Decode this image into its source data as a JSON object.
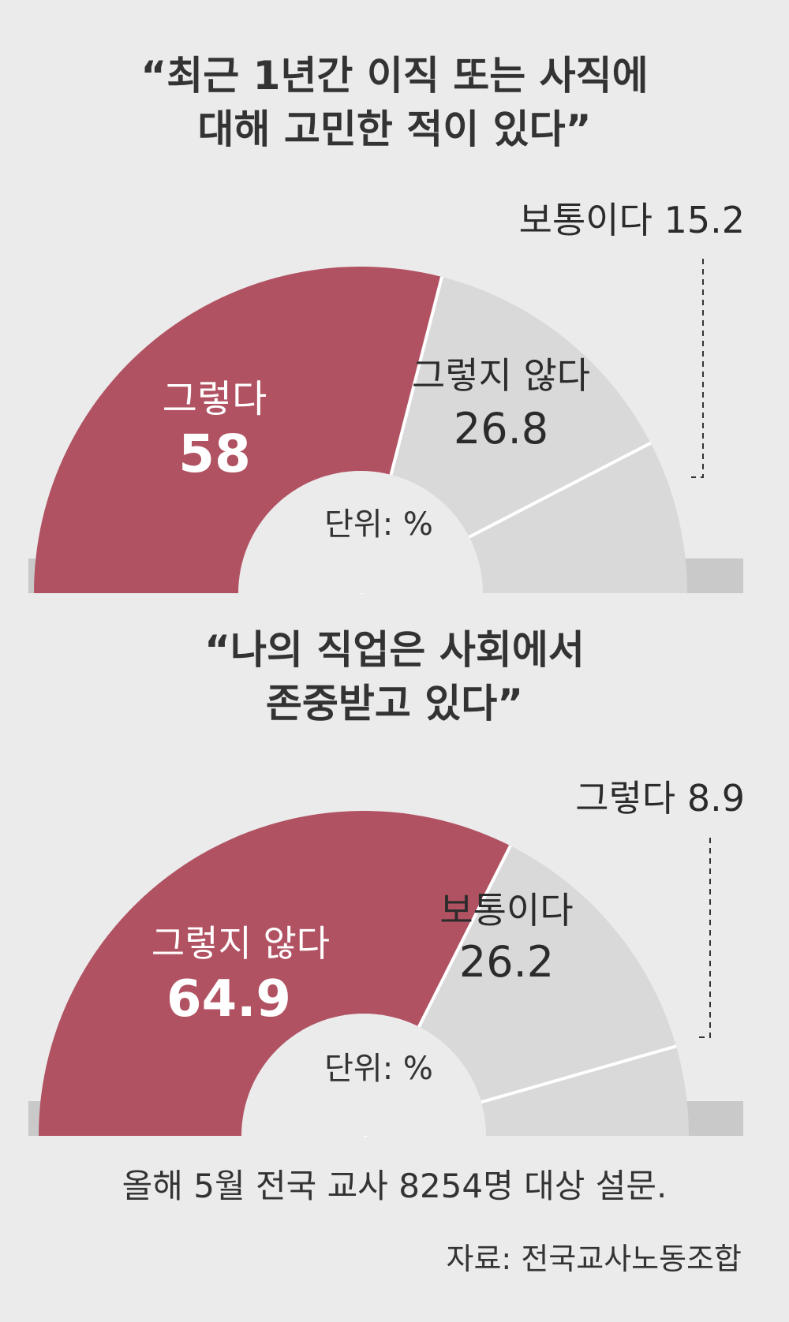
{
  "chart_data": [
    {
      "type": "pie",
      "title_line1": "“최근 1년간 이직 또는 사직에",
      "title_line2": "대해 고민한 적이 있다”",
      "unit_label": "단위: %",
      "categories": [
        "그렇다",
        "그렇지 않다",
        "보통이다"
      ],
      "values": [
        58,
        26.8,
        15.2
      ],
      "labels": {
        "primary_name": "그렇다",
        "primary_value": "58",
        "secondary_name": "그렇지 않다",
        "secondary_value": "26.8",
        "callout": "보통이다 15.2"
      },
      "colors": [
        "#b15262",
        "#d9d9da",
        "#d9d9da"
      ]
    },
    {
      "type": "pie",
      "title_line1": "“나의 직업은 사회에서",
      "title_line2": "존중받고 있다”",
      "unit_label": "단위: %",
      "categories": [
        "그렇지 않다",
        "보통이다",
        "그렇다"
      ],
      "values": [
        64.9,
        26.2,
        8.9
      ],
      "labels": {
        "primary_name": "그렇지 않다",
        "primary_value": "64.9",
        "secondary_name": "보통이다",
        "secondary_value": "26.2",
        "callout": "그렇다 8.9"
      },
      "colors": [
        "#b15262",
        "#d9d9da",
        "#d9d9da"
      ]
    }
  ],
  "footer": {
    "note": "올해 5월 전국 교사 8254명 대상 설문.",
    "source": "자료: 전국교사노동조합"
  }
}
